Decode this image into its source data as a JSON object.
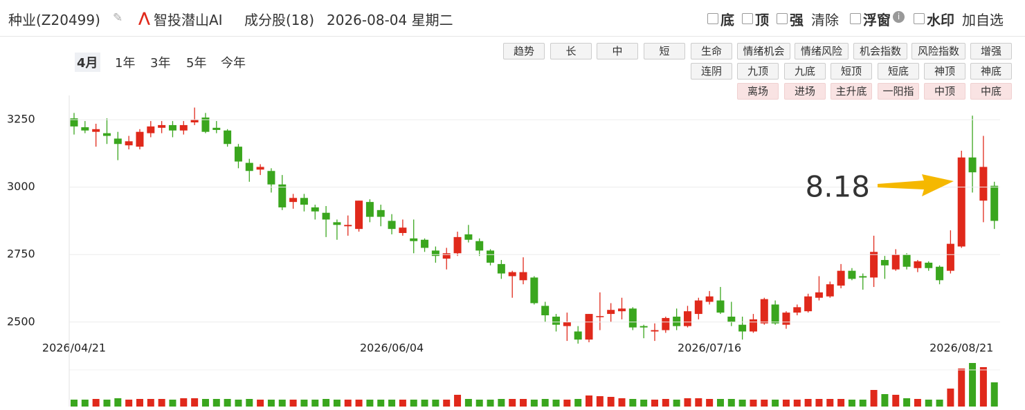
{
  "header": {
    "title": "种业(Z20499)",
    "brand": "智投潜山AI",
    "constituents": "成分股(18)",
    "date": "2026-08-04 星期二",
    "options": [
      "底",
      "顶",
      "强"
    ],
    "clear": "清除",
    "float": "浮窗",
    "watermark": "水印",
    "add": "加自选"
  },
  "periods": [
    "4月",
    "1年",
    "3年",
    "5年",
    "今年"
  ],
  "buttons": [
    [
      "趋势",
      "长",
      "中",
      "短",
      "生命",
      "情绪机会",
      "情绪风险",
      "机会指数",
      "风险指数",
      "增强"
    ],
    [
      "连阴",
      "九顶",
      "九底",
      "短顶",
      "短底",
      "神顶",
      "神底"
    ],
    [
      "离场",
      "进场",
      "主升底",
      "一阳指",
      "中顶",
      "中底"
    ]
  ],
  "chart_data": {
    "type": "candlestick",
    "up_color": "#e0291b",
    "down_color": "#3aa61e",
    "annotation": "8.18",
    "ylim": [
      2420,
      3340
    ],
    "yticks": [
      2500,
      2750,
      3000,
      3250
    ],
    "grid": true,
    "volume_lim": [
      0,
      63
    ],
    "categories": [
      "2026/04/21",
      null,
      null,
      null,
      null,
      null,
      null,
      null,
      null,
      null,
      null,
      null,
      null,
      null,
      null,
      null,
      null,
      null,
      null,
      null,
      null,
      null,
      null,
      null,
      null,
      null,
      null,
      null,
      null,
      "2026/06/04",
      null,
      null,
      null,
      null,
      null,
      null,
      null,
      null,
      null,
      null,
      null,
      null,
      null,
      null,
      null,
      null,
      null,
      null,
      null,
      null,
      null,
      null,
      null,
      null,
      null,
      null,
      null,
      null,
      "2026/07/16",
      null,
      null,
      null,
      null,
      null,
      null,
      null,
      null,
      null,
      null,
      null,
      null,
      null,
      null,
      null,
      null,
      null,
      null,
      null,
      null,
      null,
      null,
      "2026/08/21",
      null,
      null,
      null
    ],
    "open": [
      3255,
      3222,
      3205,
      3200,
      3180,
      3155,
      3150,
      3200,
      3220,
      3230,
      3210,
      3240,
      3258,
      3220,
      3210,
      3150,
      3090,
      3065,
      3060,
      3010,
      2945,
      2960,
      2925,
      2905,
      2870,
      2855,
      2845,
      2945,
      2915,
      2875,
      2830,
      2810,
      2805,
      2765,
      2735,
      2755,
      2825,
      2800,
      2765,
      2715,
      2670,
      2655,
      2665,
      2560,
      2520,
      2485,
      2465,
      2435,
      2518,
      2530,
      2540,
      2550,
      2485,
      2465,
      2470,
      2520,
      2485,
      2530,
      2575,
      2580,
      2520,
      2490,
      2465,
      2495,
      2565,
      2490,
      2535,
      2540,
      2590,
      2595,
      2635,
      2690,
      2670,
      2665,
      2730,
      2695,
      2750,
      2700,
      2720,
      2705,
      2690,
      2780,
      3110,
      2950,
      3005
    ],
    "close": [
      3225,
      3210,
      3215,
      3190,
      3160,
      3170,
      3205,
      3225,
      3230,
      3210,
      3230,
      3250,
      3205,
      3212,
      3160,
      3095,
      3060,
      3075,
      3010,
      2925,
      2960,
      2935,
      2910,
      2880,
      2860,
      2860,
      2950,
      2890,
      2890,
      2845,
      2850,
      2800,
      2775,
      2745,
      2755,
      2815,
      2805,
      2765,
      2720,
      2680,
      2685,
      2685,
      2570,
      2525,
      2490,
      2500,
      2435,
      2530,
      2522,
      2545,
      2550,
      2480,
      2480,
      2470,
      2515,
      2485,
      2540,
      2580,
      2595,
      2535,
      2500,
      2465,
      2510,
      2585,
      2495,
      2535,
      2555,
      2595,
      2610,
      2640,
      2690,
      2660,
      2665,
      2760,
      2710,
      2750,
      2705,
      2725,
      2700,
      2655,
      2790,
      3110,
      3055,
      3075,
      2875
    ],
    "high": [
      3275,
      3245,
      3235,
      3255,
      3205,
      3190,
      3215,
      3245,
      3245,
      3245,
      3245,
      3295,
      3275,
      3245,
      3215,
      3160,
      3105,
      3085,
      3070,
      3045,
      2975,
      2975,
      2935,
      2930,
      2880,
      2895,
      2950,
      2955,
      2935,
      2900,
      2880,
      2880,
      2810,
      2780,
      2775,
      2835,
      2860,
      2810,
      2770,
      2730,
      2690,
      2740,
      2670,
      2575,
      2530,
      2535,
      2485,
      2530,
      2610,
      2570,
      2590,
      2555,
      2490,
      2495,
      2520,
      2550,
      2560,
      2590,
      2615,
      2630,
      2575,
      2520,
      2530,
      2590,
      2580,
      2540,
      2565,
      2605,
      2670,
      2650,
      2715,
      2700,
      2680,
      2820,
      2745,
      2770,
      2755,
      2730,
      2725,
      2710,
      2840,
      3135,
      3265,
      3190,
      3020
    ],
    "low": [
      3195,
      3200,
      3150,
      3160,
      3100,
      3140,
      3140,
      3185,
      3200,
      3185,
      3195,
      3230,
      3200,
      3200,
      3150,
      3070,
      3020,
      3045,
      2980,
      2915,
      2920,
      2910,
      2880,
      2815,
      2805,
      2820,
      2835,
      2870,
      2855,
      2825,
      2820,
      2755,
      2760,
      2720,
      2695,
      2745,
      2795,
      2745,
      2710,
      2660,
      2590,
      2640,
      2565,
      2500,
      2465,
      2430,
      2420,
      2425,
      2470,
      2500,
      2510,
      2470,
      2440,
      2430,
      2460,
      2470,
      2480,
      2510,
      2565,
      2530,
      2485,
      2435,
      2460,
      2490,
      2490,
      2475,
      2525,
      2535,
      2580,
      2590,
      2625,
      2655,
      2620,
      2630,
      2660,
      2690,
      2695,
      2685,
      2690,
      2640,
      2680,
      2775,
      2980,
      2870,
      2845
    ],
    "volume": [
      10,
      10,
      11,
      10,
      12,
      10,
      11,
      11,
      11,
      10,
      12,
      12,
      11,
      11,
      11,
      10,
      11,
      10,
      10,
      10,
      10,
      10,
      10,
      11,
      10,
      10,
      10,
      10,
      10,
      10,
      10,
      10,
      10,
      10,
      10,
      17,
      11,
      10,
      10,
      11,
      11,
      11,
      10,
      11,
      10,
      10,
      11,
      16,
      15,
      14,
      12,
      11,
      10,
      10,
      11,
      10,
      12,
      12,
      11,
      11,
      11,
      10,
      10,
      10,
      10,
      10,
      10,
      11,
      11,
      11,
      11,
      10,
      10,
      24,
      18,
      17,
      12,
      11,
      10,
      10,
      26,
      55,
      63,
      57,
      35
    ]
  }
}
